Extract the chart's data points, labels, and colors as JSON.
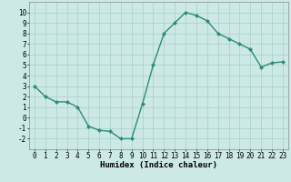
{
  "x": [
    0,
    1,
    2,
    3,
    4,
    5,
    6,
    7,
    8,
    9,
    10,
    11,
    12,
    13,
    14,
    15,
    16,
    17,
    18,
    19,
    20,
    21,
    22,
    23
  ],
  "y": [
    3,
    2,
    1.5,
    1.5,
    1,
    -0.8,
    -1.2,
    -1.3,
    -2,
    -2,
    1.3,
    5,
    8,
    9,
    10,
    9.7,
    9.2,
    8,
    7.5,
    7,
    6.5,
    4.8,
    5.2,
    5.3
  ],
  "line_color": "#2e8b7a",
  "marker": "D",
  "marker_size": 2.0,
  "bg_color": "#cce9e5",
  "grid_color": "#a8cfc9",
  "xlabel": "Humidex (Indice chaleur)",
  "xlim": [
    -0.5,
    23.5
  ],
  "ylim": [
    -3,
    11
  ],
  "yticks": [
    -2,
    -1,
    0,
    1,
    2,
    3,
    4,
    5,
    6,
    7,
    8,
    9,
    10
  ],
  "xticks": [
    0,
    1,
    2,
    3,
    4,
    5,
    6,
    7,
    8,
    9,
    10,
    11,
    12,
    13,
    14,
    15,
    16,
    17,
    18,
    19,
    20,
    21,
    22,
    23
  ],
  "xlabel_fontsize": 6.5,
  "tick_fontsize": 5.5,
  "line_width": 1.0
}
